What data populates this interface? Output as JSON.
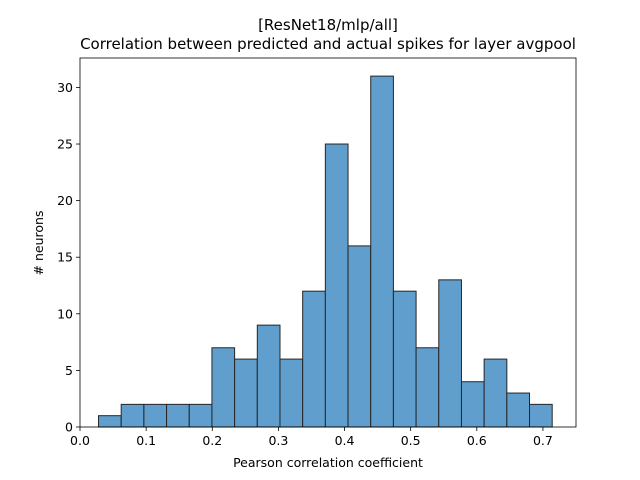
{
  "chart_data": {
    "type": "bar",
    "title_line1": "[ResNet18/mlp/all]",
    "title_line2": "Correlation between predicted and actual spikes for layer avgpool",
    "xlabel": "Pearson correlation coefficient",
    "ylabel": "# neurons",
    "xlim": [
      0.0,
      0.75
    ],
    "ylim": [
      0,
      32.6
    ],
    "xticks": [
      0.0,
      0.1,
      0.2,
      0.3,
      0.4,
      0.5,
      0.6,
      0.7
    ],
    "xtick_labels": [
      "0.0",
      "0.1",
      "0.2",
      "0.3",
      "0.4",
      "0.5",
      "0.6",
      "0.7"
    ],
    "yticks": [
      0,
      5,
      10,
      15,
      20,
      25,
      30
    ],
    "ytick_labels": [
      "0",
      "5",
      "10",
      "15",
      "20",
      "25",
      "30"
    ],
    "bins_start": 0.028,
    "bin_width": 0.0343,
    "counts": [
      1,
      2,
      2,
      2,
      2,
      7,
      6,
      9,
      6,
      12,
      25,
      16,
      31,
      12,
      7,
      13,
      4,
      6,
      3,
      2
    ],
    "bar_color": "#5f9ecd",
    "edge_color": "#262626",
    "grid": false
  }
}
